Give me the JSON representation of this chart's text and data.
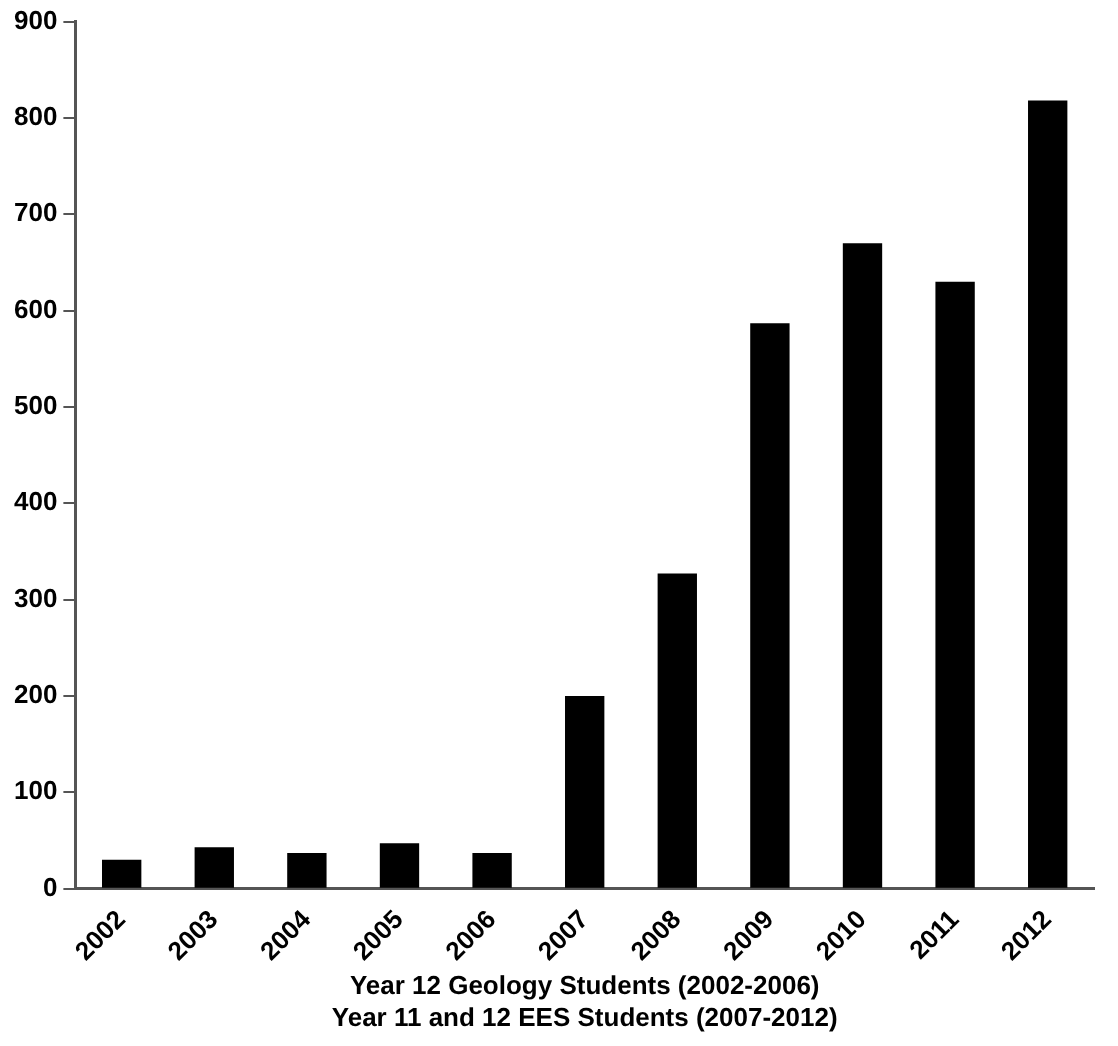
{
  "chart_data": {
    "type": "bar",
    "xlabel": "Year 12 Geology Students (2002-2006)\nYear 11 and 12 EES Students (2007-2012)",
    "categories": [
      "2002",
      "2003",
      "2004",
      "2005",
      "2006",
      "2007",
      "2008",
      "2009",
      "2010",
      "2011",
      "2012"
    ],
    "values": [
      30,
      43,
      37,
      47,
      37,
      200,
      327,
      587,
      670,
      630,
      818
    ],
    "color": "#000000",
    "ylim": [
      0,
      900
    ],
    "yticks": [
      0,
      100,
      200,
      300,
      400,
      500,
      600,
      700,
      800,
      900
    ],
    "grid": false,
    "legend": false
  }
}
